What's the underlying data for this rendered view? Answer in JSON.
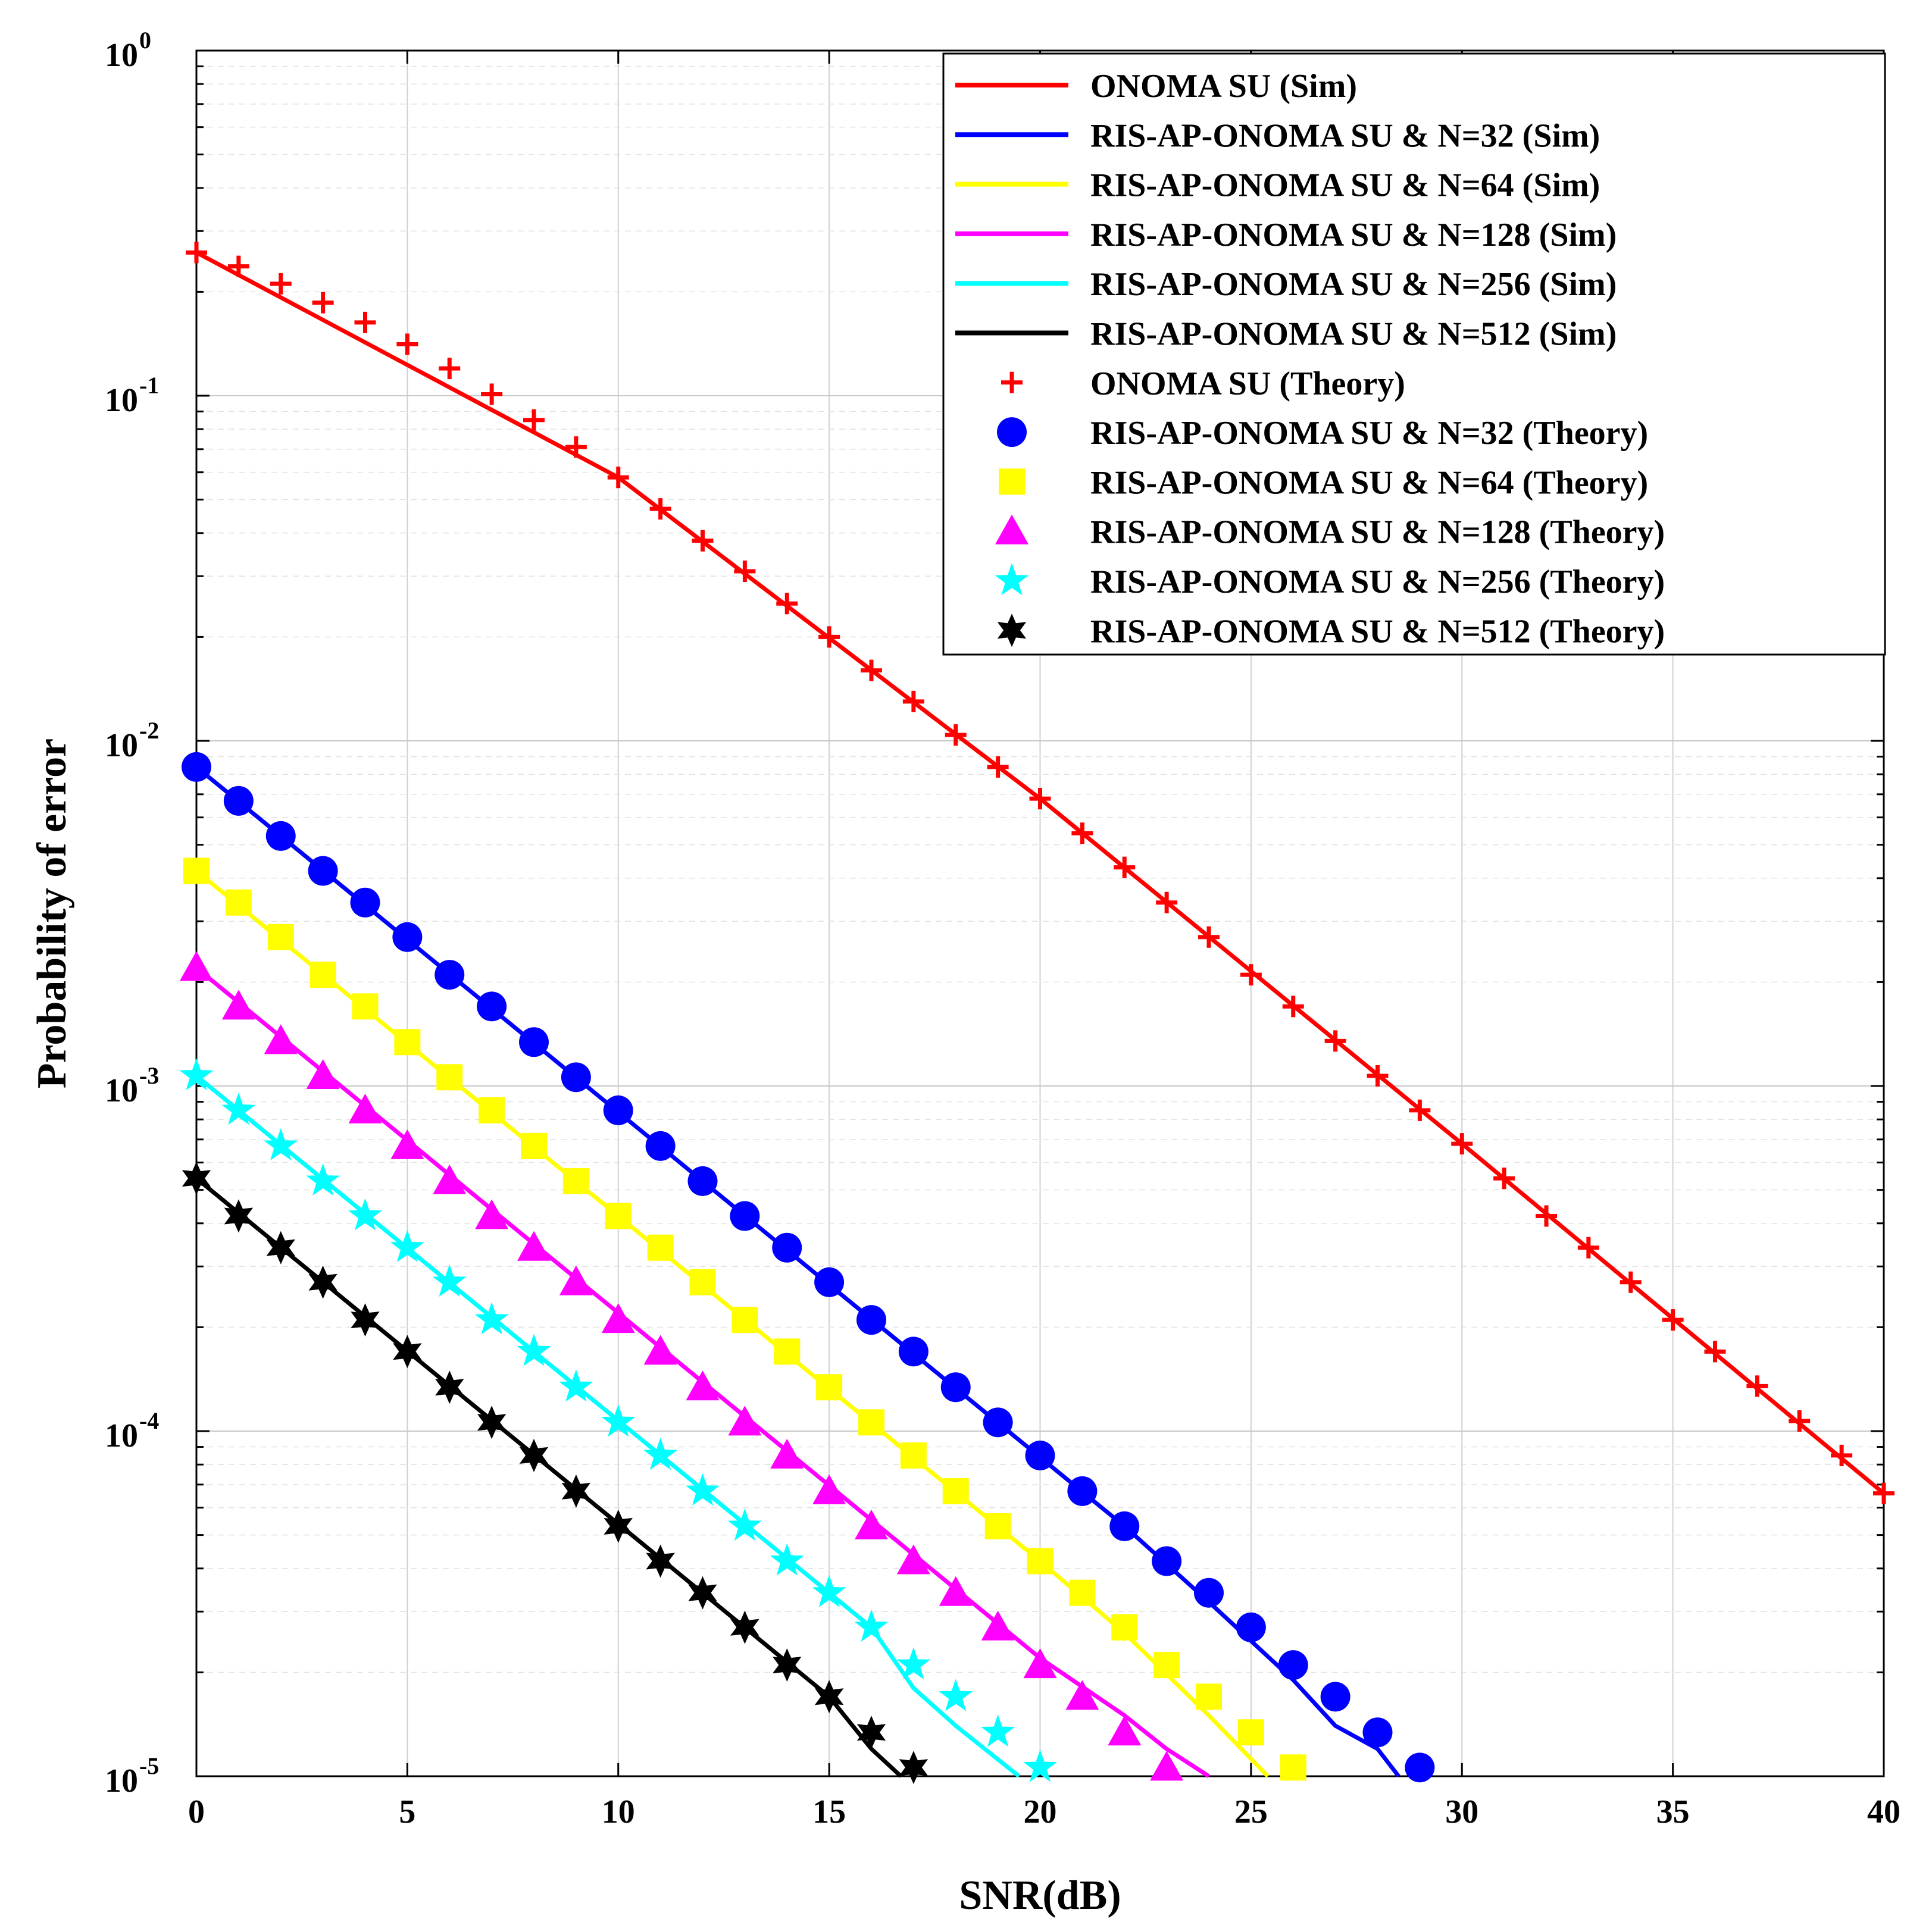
{
  "chart_data": {
    "type": "line",
    "title": "",
    "xlabel": "SNR(dB)",
    "ylabel": "Probability of error",
    "xlim": [
      0,
      40
    ],
    "ylim": [
      1e-05,
      1
    ],
    "yscale": "log",
    "grid": true,
    "legend_position": "top-right",
    "x_ticks": [
      {
        "value": 0,
        "label": "0"
      },
      {
        "value": 5,
        "label": "5"
      },
      {
        "value": 10,
        "label": "10"
      },
      {
        "value": 15,
        "label": "15"
      },
      {
        "value": 20,
        "label": "20"
      },
      {
        "value": 25,
        "label": "25"
      },
      {
        "value": 30,
        "label": "30"
      },
      {
        "value": 35,
        "label": "35"
      },
      {
        "value": 40,
        "label": "40"
      }
    ],
    "y_ticks": [
      {
        "exp": 0,
        "base": "10",
        "sup": "0"
      },
      {
        "exp": -1,
        "base": "10",
        "sup": "-1"
      },
      {
        "exp": -2,
        "base": "10",
        "sup": "-2"
      },
      {
        "exp": -3,
        "base": "10",
        "sup": "-3"
      },
      {
        "exp": -4,
        "base": "10",
        "sup": "-4"
      },
      {
        "exp": -5,
        "base": "10",
        "sup": "-5"
      }
    ],
    "series": [
      {
        "name": "ONOMA SU (Sim)",
        "kind": "line",
        "color": "#ff0000",
        "x": [
          0,
          10,
          20,
          30,
          40
        ],
        "y": [
          0.26,
          0.058,
          0.0068,
          0.00068,
          6.6e-05
        ]
      },
      {
        "name": "RIS-AP-ONOMA SU & N=32 (Sim)",
        "kind": "line",
        "color": "#0000ff",
        "x": [
          0,
          20,
          22,
          24,
          26,
          27,
          28,
          28.5
        ],
        "y": [
          0.0084,
          8.4e-05,
          5.3e-05,
          3.2e-05,
          1.9e-05,
          1.4e-05,
          1.2e-05,
          1e-05
        ]
      },
      {
        "name": "RIS-AP-ONOMA SU & N=64 (Sim)",
        "kind": "line",
        "color": "#ffff00",
        "x": [
          0,
          20,
          22,
          24,
          25.4
        ],
        "y": [
          0.0042,
          4.2e-05,
          2.6e-05,
          1.5e-05,
          1e-05
        ]
      },
      {
        "name": "RIS-AP-ONOMA SU & N=128 (Sim)",
        "kind": "line",
        "color": "#ff00ff",
        "x": [
          0,
          20,
          22,
          23,
          24
        ],
        "y": [
          0.0022,
          2.2e-05,
          1.5e-05,
          1.2e-05,
          1e-05
        ]
      },
      {
        "name": "RIS-AP-ONOMA SU & N=256 (Sim)",
        "kind": "line",
        "color": "#00ffff",
        "x": [
          0,
          16,
          17,
          18,
          19.5
        ],
        "y": [
          0.00107,
          2.7e-05,
          1.8e-05,
          1.4e-05,
          1e-05
        ]
      },
      {
        "name": "RIS-AP-ONOMA SU & N=512 (Sim)",
        "kind": "line",
        "color": "#000000",
        "x": [
          0,
          15,
          16,
          16.7
        ],
        "y": [
          0.00054,
          1.7e-05,
          1.2e-05,
          1e-05
        ]
      },
      {
        "name": "ONOMA SU (Theory)",
        "kind": "marker",
        "marker": "plus",
        "color": "#ff0000",
        "x": [
          0,
          1,
          2,
          3,
          4,
          5,
          6,
          7,
          8,
          9,
          10,
          11,
          12,
          13,
          14,
          15,
          16,
          17,
          18,
          19,
          20,
          21,
          22,
          23,
          24,
          25,
          26,
          27,
          28,
          29,
          30,
          31,
          32,
          33,
          34,
          35,
          36,
          37,
          38,
          39,
          40
        ],
        "y": [
          0.26,
          0.237,
          0.211,
          0.186,
          0.163,
          0.141,
          0.12,
          0.101,
          0.085,
          0.071,
          0.058,
          0.047,
          0.038,
          0.031,
          0.025,
          0.02,
          0.016,
          0.013,
          0.0104,
          0.0084,
          0.0068,
          0.0054,
          0.0043,
          0.0034,
          0.0027,
          0.0021,
          0.0017,
          0.00135,
          0.00107,
          0.00085,
          0.00068,
          0.00054,
          0.00042,
          0.00034,
          0.00027,
          0.00021,
          0.00017,
          0.000135,
          0.000107,
          8.5e-05,
          6.6e-05
        ]
      },
      {
        "name": "RIS-AP-ONOMA SU & N=32 (Theory)",
        "kind": "marker",
        "marker": "circle",
        "color": "#0000ff",
        "x": [
          0,
          1,
          2,
          3,
          4,
          5,
          6,
          7,
          8,
          9,
          10,
          11,
          12,
          13,
          14,
          15,
          16,
          17,
          18,
          19,
          20,
          21,
          22,
          23,
          24,
          25,
          26,
          27,
          28,
          29
        ],
        "y": [
          0.0084,
          0.0067,
          0.0053,
          0.0042,
          0.0034,
          0.0027,
          0.0021,
          0.0017,
          0.00134,
          0.00106,
          0.00085,
          0.00067,
          0.00053,
          0.00042,
          0.00034,
          0.00027,
          0.00021,
          0.00017,
          0.000134,
          0.000106,
          8.5e-05,
          6.7e-05,
          5.3e-05,
          4.2e-05,
          3.4e-05,
          2.7e-05,
          2.1e-05,
          1.7e-05,
          1.34e-05,
          1.06e-05
        ]
      },
      {
        "name": "RIS-AP-ONOMA SU & N=64 (Theory)",
        "kind": "marker",
        "marker": "square",
        "color": "#ffff00",
        "x": [
          0,
          1,
          2,
          3,
          4,
          5,
          6,
          7,
          8,
          9,
          10,
          11,
          12,
          13,
          14,
          15,
          16,
          17,
          18,
          19,
          20,
          21,
          22,
          23,
          24,
          25,
          26
        ],
        "y": [
          0.0042,
          0.0034,
          0.0027,
          0.0021,
          0.0017,
          0.00134,
          0.00106,
          0.00085,
          0.00067,
          0.00053,
          0.00042,
          0.00034,
          0.00027,
          0.00021,
          0.00017,
          0.000134,
          0.000106,
          8.5e-05,
          6.7e-05,
          5.3e-05,
          4.2e-05,
          3.4e-05,
          2.7e-05,
          2.1e-05,
          1.7e-05,
          1.34e-05,
          1.06e-05
        ]
      },
      {
        "name": "RIS-AP-ONOMA SU & N=128 (Theory)",
        "kind": "marker",
        "marker": "triangle",
        "color": "#ff00ff",
        "x": [
          0,
          1,
          2,
          3,
          4,
          5,
          6,
          7,
          8,
          9,
          10,
          11,
          12,
          13,
          14,
          15,
          16,
          17,
          18,
          19,
          20,
          21,
          22,
          23
        ],
        "y": [
          0.0022,
          0.0017,
          0.00135,
          0.00107,
          0.00085,
          0.00067,
          0.00053,
          0.00042,
          0.00034,
          0.00027,
          0.00021,
          0.00017,
          0.000134,
          0.000106,
          8.5e-05,
          6.7e-05,
          5.3e-05,
          4.2e-05,
          3.4e-05,
          2.7e-05,
          2.1e-05,
          1.7e-05,
          1.34e-05,
          1.06e-05
        ]
      },
      {
        "name": "RIS-AP-ONOMA SU & N=256 (Theory)",
        "kind": "marker",
        "marker": "star",
        "color": "#00ffff",
        "x": [
          0,
          1,
          2,
          3,
          4,
          5,
          6,
          7,
          8,
          9,
          10,
          11,
          12,
          13,
          14,
          15,
          16,
          17,
          18,
          19,
          20
        ],
        "y": [
          0.00107,
          0.00085,
          0.00067,
          0.00053,
          0.00042,
          0.00034,
          0.00027,
          0.00021,
          0.00017,
          0.000134,
          0.000106,
          8.5e-05,
          6.7e-05,
          5.3e-05,
          4.2e-05,
          3.4e-05,
          2.7e-05,
          2.1e-05,
          1.7e-05,
          1.34e-05,
          1.06e-05
        ]
      },
      {
        "name": "RIS-AP-ONOMA SU & N=512 (Theory)",
        "kind": "marker",
        "marker": "hexstar",
        "color": "#000000",
        "x": [
          0,
          1,
          2,
          3,
          4,
          5,
          6,
          7,
          8,
          9,
          10,
          11,
          12,
          13,
          14,
          15,
          16,
          17
        ],
        "y": [
          0.00054,
          0.00042,
          0.00034,
          0.00027,
          0.00021,
          0.00017,
          0.000134,
          0.000106,
          8.5e-05,
          6.7e-05,
          5.3e-05,
          4.2e-05,
          3.4e-05,
          2.7e-05,
          2.1e-05,
          1.7e-05,
          1.34e-05,
          1.06e-05
        ]
      }
    ]
  }
}
